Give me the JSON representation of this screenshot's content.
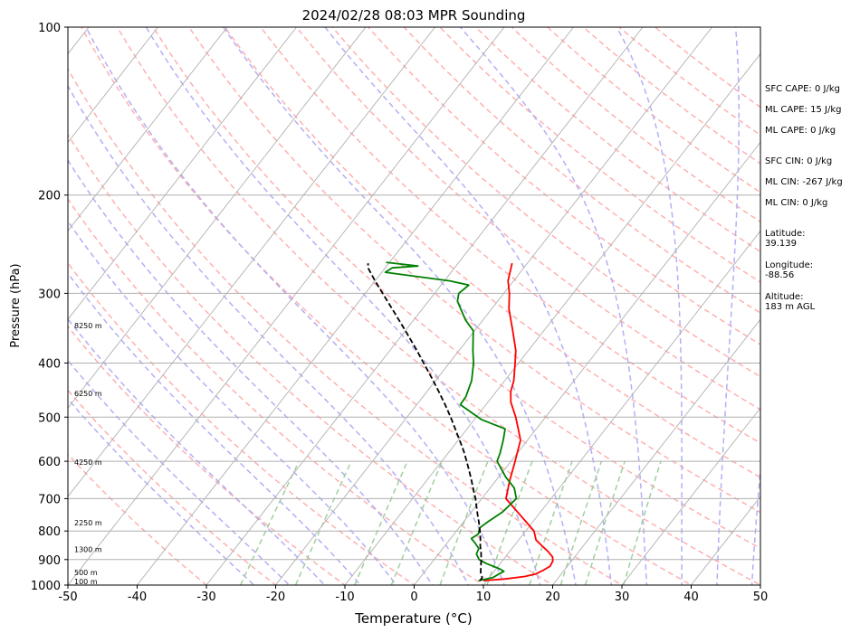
{
  "chart_data": {
    "type": "line",
    "subtype": "skew-t log-p sounding",
    "title": "2024/02/28 08:03 MPR Sounding",
    "xlabel": "Temperature (°C)",
    "ylabel": "Pressure (hPa)",
    "xlim": [
      -50,
      50
    ],
    "ylim": [
      1000,
      100
    ],
    "y_scale": "log",
    "x_ticks": [
      -50,
      -40,
      -30,
      -20,
      -10,
      0,
      10,
      20,
      30,
      40,
      50
    ],
    "y_ticks": [
      1000,
      900,
      800,
      700,
      600,
      500,
      400,
      300,
      200,
      100
    ],
    "grid": true,
    "height_labels": [
      {
        "text": "100 m",
        "p": 989
      },
      {
        "text": "500 m",
        "p": 953
      },
      {
        "text": "1300 m",
        "p": 866
      },
      {
        "text": "2250 m",
        "p": 776
      },
      {
        "text": "4250 m",
        "p": 604
      },
      {
        "text": "6250 m",
        "p": 455
      },
      {
        "text": "8250 m",
        "p": 344
      }
    ],
    "series": [
      {
        "role": "temperature",
        "color": "#ff0000",
        "points": [
          [
            982,
            9.5
          ],
          [
            975,
            12.5
          ],
          [
            965,
            15.0
          ],
          [
            955,
            16.3
          ],
          [
            940,
            17.0
          ],
          [
            925,
            17.5
          ],
          [
            905,
            17.3
          ],
          [
            890,
            16.8
          ],
          [
            870,
            15.5
          ],
          [
            850,
            14.0
          ],
          [
            830,
            12.5
          ],
          [
            800,
            11.2
          ],
          [
            770,
            9.0
          ],
          [
            740,
            6.7
          ],
          [
            700,
            3.5
          ],
          [
            650,
            2.0
          ],
          [
            600,
            0.6
          ],
          [
            550,
            -1.0
          ],
          [
            525,
            -2.6
          ],
          [
            500,
            -4.3
          ],
          [
            470,
            -6.7
          ],
          [
            450,
            -7.9
          ],
          [
            430,
            -8.7
          ],
          [
            400,
            -10.5
          ],
          [
            380,
            -11.8
          ],
          [
            350,
            -14.5
          ],
          [
            320,
            -17.5
          ],
          [
            300,
            -19.2
          ],
          [
            285,
            -20.8
          ],
          [
            265,
            -22.2
          ]
        ]
      },
      {
        "role": "dewpoint",
        "color": "#008000",
        "points": [
          [
            982,
            8.8
          ],
          [
            970,
            10.5
          ],
          [
            955,
            11.0
          ],
          [
            945,
            11.4
          ],
          [
            935,
            10.5
          ],
          [
            915,
            8.0
          ],
          [
            900,
            6.5
          ],
          [
            880,
            5.5
          ],
          [
            860,
            5.2
          ],
          [
            840,
            4.0
          ],
          [
            825,
            3.0
          ],
          [
            810,
            3.5
          ],
          [
            790,
            3.0
          ],
          [
            770,
            3.5
          ],
          [
            740,
            4.5
          ],
          [
            700,
            5.0
          ],
          [
            670,
            3.5
          ],
          [
            640,
            1.0
          ],
          [
            600,
            -2.0
          ],
          [
            580,
            -2.5
          ],
          [
            550,
            -3.5
          ],
          [
            525,
            -4.5
          ],
          [
            505,
            -9.0
          ],
          [
            475,
            -13.7
          ],
          [
            460,
            -13.8
          ],
          [
            430,
            -14.8
          ],
          [
            400,
            -16.5
          ],
          [
            380,
            -18.0
          ],
          [
            350,
            -20.2
          ],
          [
            335,
            -22.5
          ],
          [
            310,
            -25.8
          ],
          [
            300,
            -26.5
          ],
          [
            290,
            -26.0
          ],
          [
            285,
            -29.2
          ],
          [
            275,
            -39.5
          ],
          [
            270,
            -39.0
          ],
          [
            268,
            -35.5
          ],
          [
            264,
            -40.5
          ]
        ]
      },
      {
        "role": "parcel",
        "color": "#000000",
        "style": "dashed",
        "points": [
          [
            982,
            9.0
          ],
          [
            970,
            9.0
          ],
          [
            950,
            8.2
          ],
          [
            925,
            7.5
          ],
          [
            900,
            6.8
          ],
          [
            875,
            6.0
          ],
          [
            850,
            5.1
          ],
          [
            825,
            4.3
          ],
          [
            800,
            3.4
          ],
          [
            775,
            2.4
          ],
          [
            750,
            1.3
          ],
          [
            725,
            0.2
          ],
          [
            700,
            -0.9
          ],
          [
            675,
            -2.2
          ],
          [
            650,
            -3.5
          ],
          [
            625,
            -4.9
          ],
          [
            600,
            -6.4
          ],
          [
            575,
            -8.0
          ],
          [
            550,
            -9.8
          ],
          [
            525,
            -11.7
          ],
          [
            500,
            -13.7
          ],
          [
            475,
            -15.9
          ],
          [
            450,
            -18.3
          ],
          [
            425,
            -20.9
          ],
          [
            400,
            -23.7
          ],
          [
            375,
            -26.7
          ],
          [
            350,
            -30.0
          ],
          [
            325,
            -33.6
          ],
          [
            300,
            -37.5
          ],
          [
            285,
            -40.0
          ],
          [
            270,
            -42.5
          ],
          [
            265,
            -43.0
          ]
        ]
      }
    ],
    "background_lines": {
      "isotherm_color": "#b0b0b0",
      "dry_adiabat_color": "#ffb0b0",
      "moist_adiabat_color": "#b4aff5",
      "mixing_ratio_color": "#a0d0a0"
    },
    "annotations": {
      "sfc_cape": "SFC CAPE: 0 J/kg",
      "ml_cape_1": "ML CAPE: 15 J/kg",
      "ml_cape_2": "ML CAPE: 0 J/kg",
      "sfc_cin": "SFC CIN: 0 J/kg",
      "ml_cin_1": "ML CIN: -267 J/kg",
      "ml_cin_2": "ML CIN: 0 J/kg",
      "latitude_label": "Latitude:",
      "latitude_value": "39.139",
      "longitude_label": "Longitude:",
      "longitude_value": "-88.56",
      "altitude_label": "Altitude:",
      "altitude_value": "183 m AGL"
    }
  }
}
